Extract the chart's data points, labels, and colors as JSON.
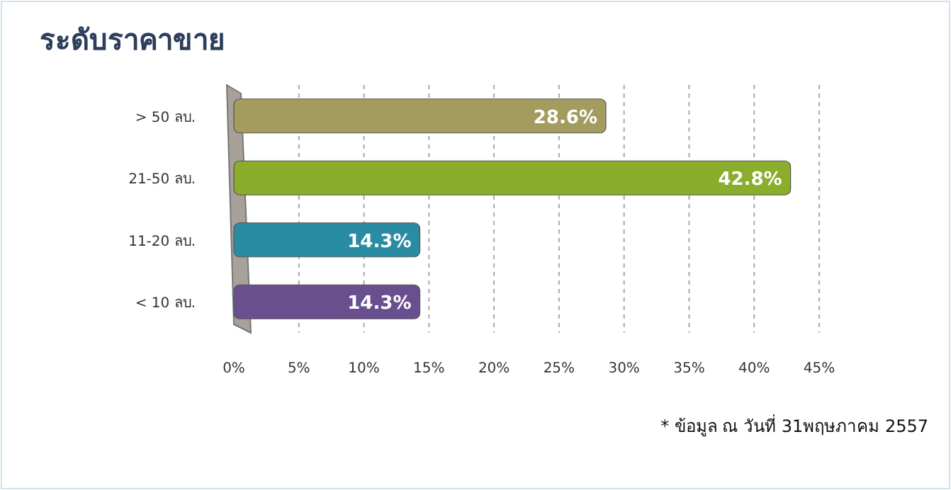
{
  "chart_data": {
    "type": "bar",
    "orientation": "horizontal",
    "title": "ระดับราคาขาย",
    "categories": [
      "> 50 ลบ.",
      "21-50 ลบ.",
      "11-20 ลบ.",
      "< 10 ลบ."
    ],
    "values": [
      28.6,
      42.8,
      14.3,
      14.3
    ],
    "colors": [
      "#a39c5e",
      "#8aad2c",
      "#2a8ca3",
      "#6a4f8f"
    ],
    "value_labels": [
      "28.6%",
      "42.8%",
      "14.3%",
      "14.3%"
    ],
    "xlim": [
      0,
      45
    ],
    "xticks": [
      {
        "value": 0,
        "label": "0%"
      },
      {
        "value": 5,
        "label": "5%"
      },
      {
        "value": 10,
        "label": "10%"
      },
      {
        "value": 15,
        "label": "15%"
      },
      {
        "value": 20,
        "label": "20%"
      },
      {
        "value": 25,
        "label": "25%"
      },
      {
        "value": 30,
        "label": "30%"
      },
      {
        "value": 35,
        "label": "35%"
      },
      {
        "value": 40,
        "label": "40%"
      },
      {
        "value": 45,
        "label": "45%"
      }
    ],
    "grid": "x",
    "annotations": [
      "* ข้อมูล ณ วันที่ 31พฤษภาคม 2557"
    ]
  }
}
